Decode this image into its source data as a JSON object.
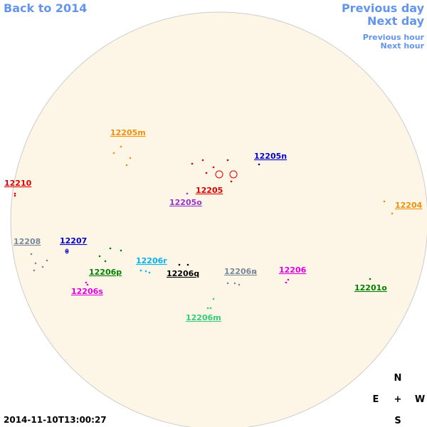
{
  "nav": {
    "back": "Back to 2014",
    "previous_day": "Previous day",
    "next_day": "Next day",
    "previous_hour": "Previous hour",
    "next_hour": "Next hour"
  },
  "regions": [
    {
      "label": "12205m",
      "color": "#f0900a"
    },
    {
      "label": "12205n",
      "color": "#0000c8"
    },
    {
      "label": "12210",
      "color": "#dd0000"
    },
    {
      "label": "12205",
      "color": "#dd0000"
    },
    {
      "label": "12205o",
      "color": "#9933cc"
    },
    {
      "label": "12204",
      "color": "#f0900a"
    },
    {
      "label": "12208",
      "color": "#778899"
    },
    {
      "label": "12207",
      "color": "#0000c8"
    },
    {
      "label": "12206r",
      "color": "#00b4f0"
    },
    {
      "label": "12206",
      "color": "#e000e0"
    },
    {
      "label": "12206p",
      "color": "#008000"
    },
    {
      "label": "12206q",
      "color": "#000000"
    },
    {
      "label": "12206n",
      "color": "#778899"
    },
    {
      "label": "12206s",
      "color": "#e000e0"
    },
    {
      "label": "12201o",
      "color": "#008000"
    },
    {
      "label": "12206m",
      "color": "#33cc77"
    }
  ],
  "compass": {
    "north": "N",
    "east": "E",
    "center": "+",
    "west": "W",
    "south": "S"
  },
  "timestamp": "2014-11-10T13:00:27"
}
